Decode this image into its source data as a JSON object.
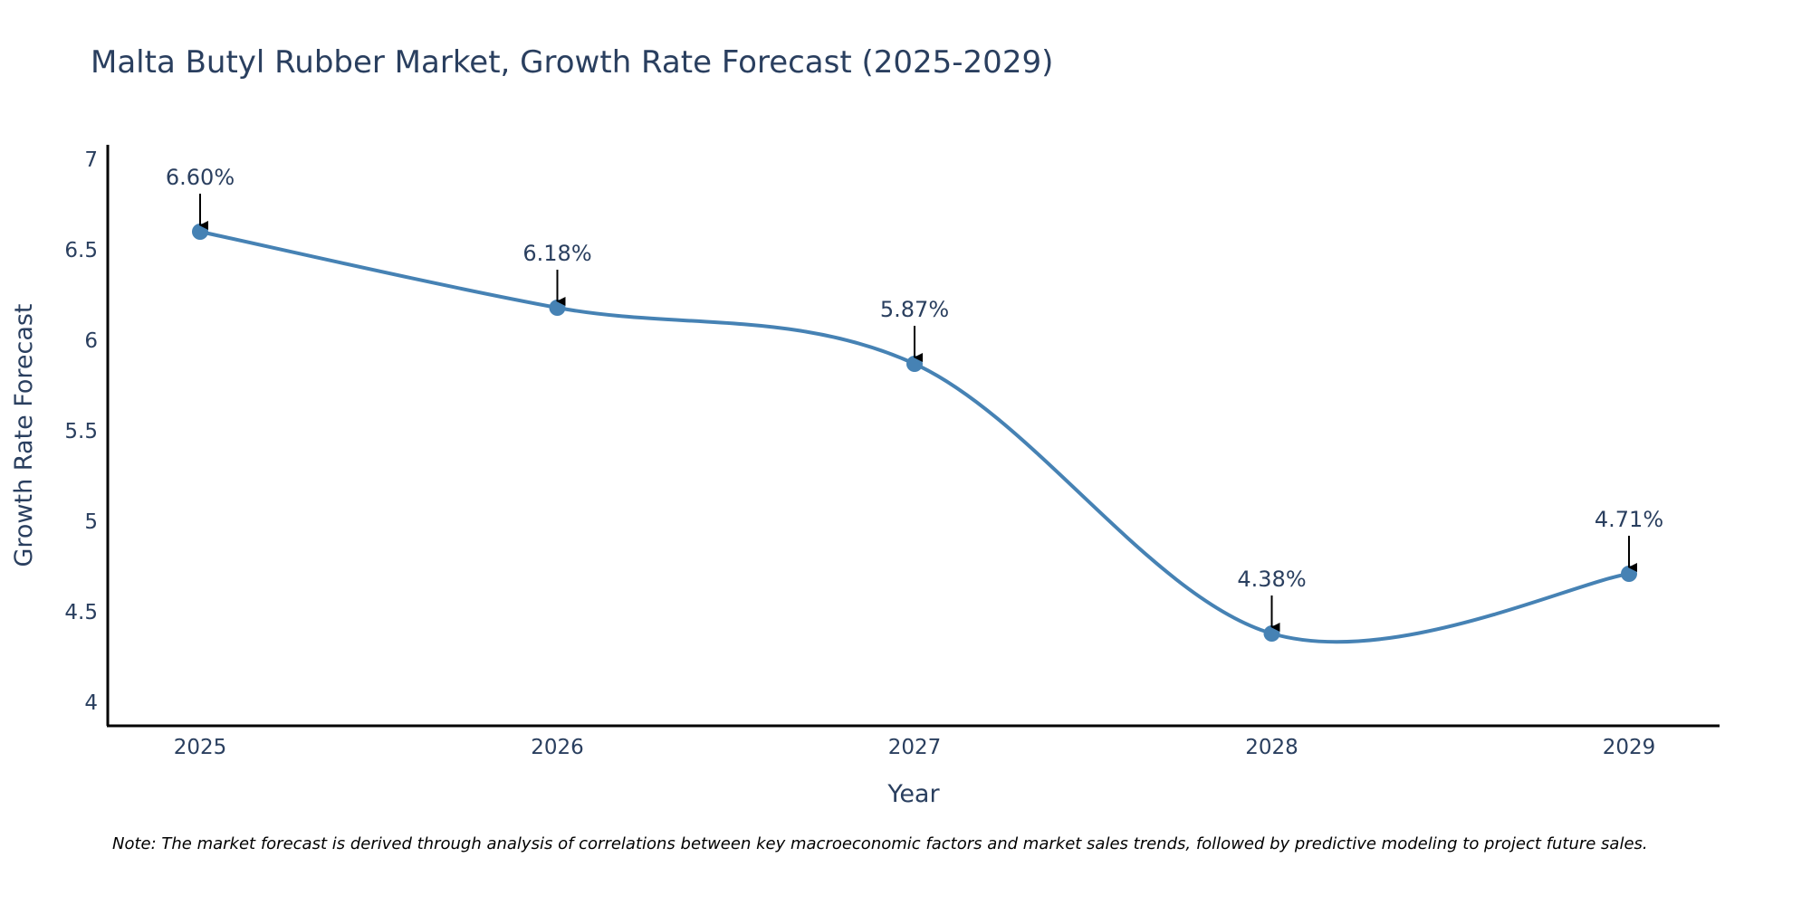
{
  "chart_data": {
    "type": "line",
    "title": "Malta Butyl Rubber Market, Growth Rate Forecast (2025-2029)",
    "xlabel": "Year",
    "ylabel": "Growth Rate Forecast",
    "categories": [
      "2025",
      "2026",
      "2027",
      "2028",
      "2029"
    ],
    "values": [
      6.6,
      6.18,
      5.87,
      4.38,
      4.71
    ],
    "data_labels": [
      "6.60%",
      "6.18%",
      "5.87%",
      "4.38%",
      "4.71%"
    ],
    "y_ticks": [
      4,
      4.5,
      5,
      5.5,
      6,
      6.5,
      7
    ],
    "y_tick_labels": [
      "4",
      "4.5",
      "5",
      "5.5",
      "6",
      "6.5",
      "7"
    ],
    "ylim": [
      3.87,
      7.08
    ],
    "grid": false,
    "line_color": "#4682b4",
    "marker_color": "#4682b4",
    "note": "Note: The market forecast is derived through analysis of correlations between key macroeconomic factors and market sales trends, followed by predictive modeling to project future sales."
  }
}
